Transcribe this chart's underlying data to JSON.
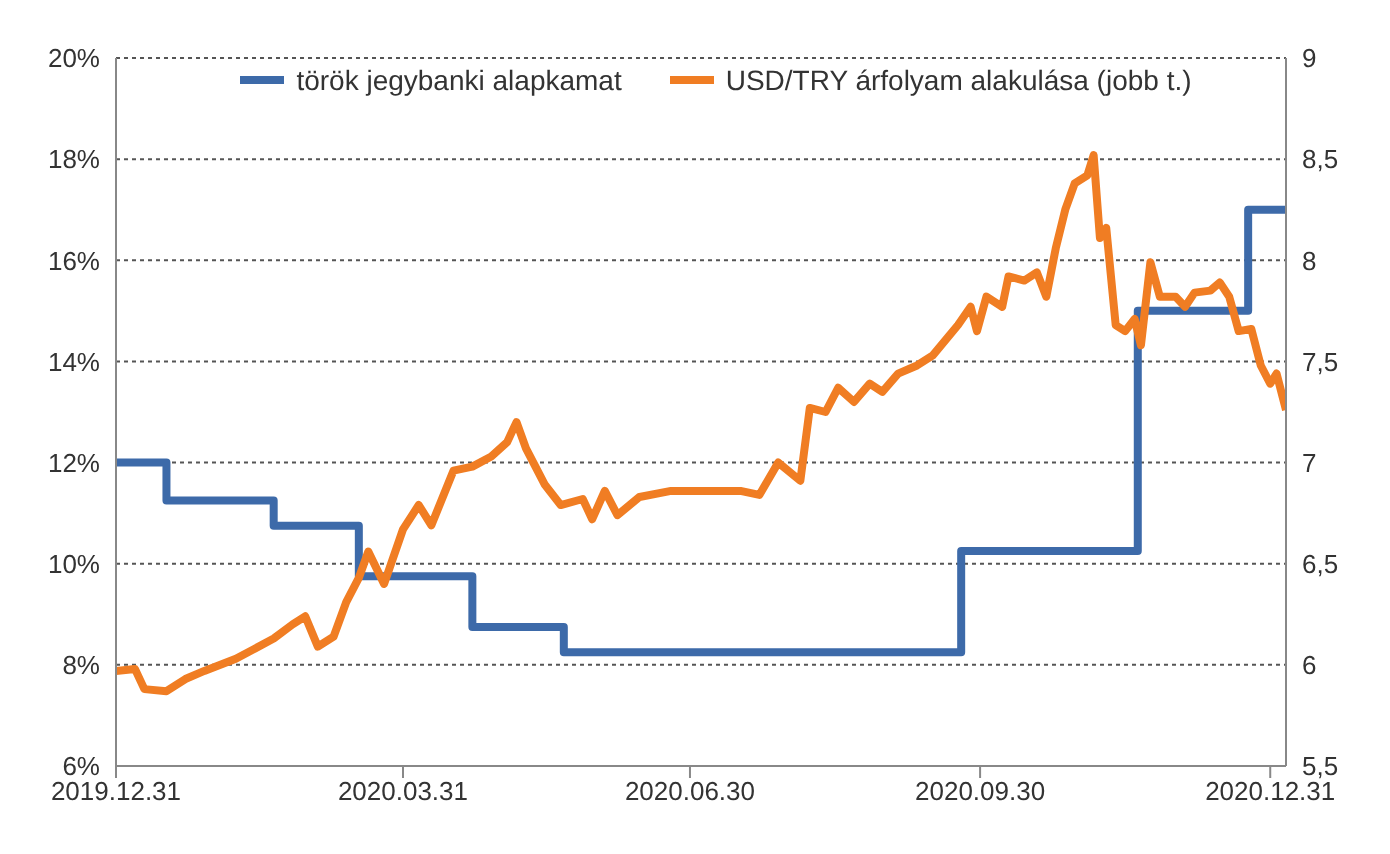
{
  "chart_data": {
    "type": "line",
    "xlim": [
      "2019-12-31",
      "2021-01-05"
    ],
    "xticks": [
      {
        "value": "2019-12-31",
        "label": "2019.12.31"
      },
      {
        "value": "2020-03-31",
        "label": "2020.03.31"
      },
      {
        "value": "2020-06-30",
        "label": "2020.06.30"
      },
      {
        "value": "2020-09-30",
        "label": "2020.09.30"
      },
      {
        "value": "2020-12-31",
        "label": "2020.12.31"
      }
    ],
    "ylim": [
      6,
      20
    ],
    "yticks": [
      {
        "value": 6,
        "label": "6%"
      },
      {
        "value": 8,
        "label": "8%"
      },
      {
        "value": 10,
        "label": "10%"
      },
      {
        "value": 12,
        "label": "12%"
      },
      {
        "value": 14,
        "label": "14%"
      },
      {
        "value": 16,
        "label": "16%"
      },
      {
        "value": 18,
        "label": "18%"
      },
      {
        "value": 20,
        "label": "20%"
      }
    ],
    "y2lim": [
      5.5,
      9
    ],
    "y2ticks": [
      {
        "value": 5.5,
        "label": "5,5"
      },
      6,
      {
        "value": 6.5,
        "label": "6,5"
      },
      7,
      {
        "value": 7.5,
        "label": "7,5"
      },
      8,
      {
        "value": 8.5,
        "label": "8,5"
      },
      9
    ],
    "grid": "y",
    "legend": "top",
    "marker": "none",
    "line_style": "solid",
    "series": [
      {
        "name": "török jegybanki alapkamat",
        "type": "step",
        "color": "#3d6aa9",
        "x": [
          "2019-12-31",
          "2020-01-16",
          "2020-02-19",
          "2020-03-17",
          "2020-04-22",
          "2020-05-21",
          "2020-09-24",
          "2020-11-19",
          "2020-12-24",
          "2021-01-05"
        ],
        "values": [
          12,
          11.25,
          10.75,
          9.75,
          8.75,
          8.25,
          10.25,
          15,
          17,
          17
        ]
      },
      {
        "name": "USD/TRY árfolyam alakulása (jobb t.)",
        "type": "line",
        "axis": "y2",
        "color": "#f07d23",
        "x": [
          "2019-12-31",
          "2020-01-06",
          "2020-01-09",
          "2020-01-16",
          "2020-01-22",
          "2020-01-28",
          "2020-02-07",
          "2020-02-13",
          "2020-02-19",
          "2020-02-25",
          "2020-02-29",
          "2020-03-04",
          "2020-03-09",
          "2020-03-13",
          "2020-03-17",
          "2020-03-20",
          "2020-03-25",
          "2020-03-31",
          "2020-04-05",
          "2020-04-09",
          "2020-04-16",
          "2020-04-22",
          "2020-04-28",
          "2020-05-03",
          "2020-05-06",
          "2020-05-09",
          "2020-05-15",
          "2020-05-20",
          "2020-05-27",
          "2020-05-30",
          "2020-06-03",
          "2020-06-07",
          "2020-06-14",
          "2020-06-24",
          "2020-07-03",
          "2020-07-16",
          "2020-07-22",
          "2020-07-28",
          "2020-08-04",
          "2020-08-07",
          "2020-08-12",
          "2020-08-16",
          "2020-08-21",
          "2020-08-26",
          "2020-08-30",
          "2020-09-04",
          "2020-09-10",
          "2020-09-15",
          "2020-09-23",
          "2020-09-27",
          "2020-09-29",
          "2020-10-02",
          "2020-10-07",
          "2020-10-09",
          "2020-10-14",
          "2020-10-18",
          "2020-10-21",
          "2020-10-24",
          "2020-10-27",
          "2020-10-30",
          "2020-11-03",
          "2020-11-05",
          "2020-11-07",
          "2020-11-09",
          "2020-11-12",
          "2020-11-15",
          "2020-11-18",
          "2020-11-20",
          "2020-11-23",
          "2020-11-26",
          "2020-12-01",
          "2020-12-04",
          "2020-12-07",
          "2020-12-12",
          "2020-12-15",
          "2020-12-18",
          "2020-12-21",
          "2020-12-25",
          "2020-12-28",
          "2020-12-31",
          "2021-01-02",
          "2021-01-05"
        ],
        "values": [
          5.97,
          5.98,
          5.88,
          5.87,
          5.93,
          5.97,
          6.03,
          6.08,
          6.13,
          6.2,
          6.24,
          6.09,
          6.14,
          6.31,
          6.43,
          6.56,
          6.4,
          6.67,
          6.79,
          6.69,
          6.96,
          6.98,
          7.03,
          7.1,
          7.2,
          7.07,
          6.89,
          6.79,
          6.82,
          6.72,
          6.86,
          6.74,
          6.83,
          6.86,
          6.86,
          6.86,
          6.84,
          7,
          6.91,
          7.27,
          7.25,
          7.37,
          7.3,
          7.39,
          7.35,
          7.44,
          7.48,
          7.53,
          7.68,
          7.77,
          7.65,
          7.82,
          7.77,
          7.92,
          7.9,
          7.94,
          7.82,
          8.06,
          8.25,
          8.38,
          8.42,
          8.52,
          8.11,
          8.16,
          7.68,
          7.65,
          7.71,
          7.58,
          7.99,
          7.82,
          7.82,
          7.77,
          7.84,
          7.85,
          7.89,
          7.82,
          7.65,
          7.66,
          7.48,
          7.39,
          7.44,
          7.26
        ]
      }
    ]
  }
}
